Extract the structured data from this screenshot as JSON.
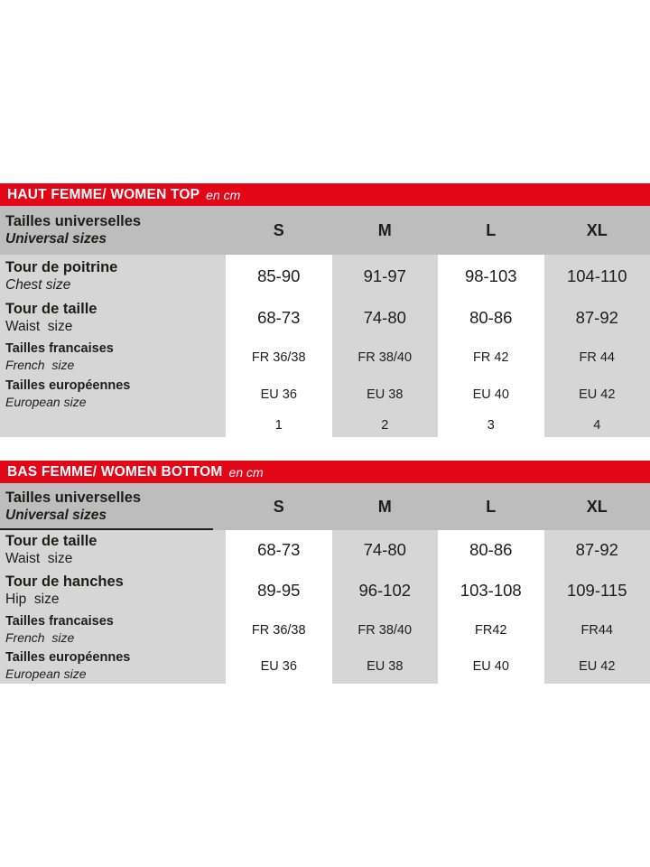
{
  "colors": {
    "header_red": "#e30617",
    "header_text": "#ffffff",
    "band_gray": "#bdbdbd",
    "cell_gray": "#d6d6d6",
    "text": "#1d1d1b"
  },
  "top_table": {
    "title": "HAUT FEMME/ WOMEN TOP",
    "unit": "en cm",
    "header": {
      "label_fr": "Tailles universelles",
      "label_en": "Universal sizes",
      "columns": [
        "S",
        "M",
        "L",
        "XL"
      ]
    },
    "rows": [
      {
        "label_fr": "Tour de poitrine",
        "label_en": "Chest size",
        "values": [
          "85-90",
          "91-97",
          "98-103",
          "104-110"
        ]
      },
      {
        "label_fr": "Tour de taille",
        "label_en": "Waist  size",
        "values": [
          "68-73",
          "74-80",
          "80-86",
          "87-92"
        ]
      },
      {
        "label_fr": "Tailles francaises",
        "label_en": "French  size",
        "values": [
          "FR 36/38",
          "FR 38/40",
          "FR 42",
          "FR 44"
        ]
      },
      {
        "label_fr": "Tailles européennes",
        "label_en": "European size",
        "values": [
          "EU 36",
          "EU 38",
          "EU 40",
          "EU 42"
        ]
      },
      {
        "label_fr": "",
        "label_en": "",
        "values": [
          "1",
          "2",
          "3",
          "4"
        ]
      }
    ]
  },
  "bottom_table": {
    "title": "BAS FEMME/ WOMEN BOTTOM",
    "unit": "en cm",
    "header": {
      "label_fr": "Tailles universelles",
      "label_en": "Universal sizes",
      "columns": [
        "S",
        "M",
        "L",
        "XL"
      ]
    },
    "rows": [
      {
        "label_fr": "Tour de taille",
        "label_en": "Waist  size",
        "values": [
          "68-73",
          "74-80",
          "80-86",
          "87-92"
        ]
      },
      {
        "label_fr": "Tour de hanches",
        "label_en": "Hip  size",
        "values": [
          "89-95",
          "96-102",
          "103-108",
          "109-115"
        ]
      },
      {
        "label_fr": "Tailles francaises",
        "label_en": "French  size",
        "values": [
          "FR 36/38",
          "FR 38/40",
          "FR42",
          "FR44"
        ]
      },
      {
        "label_fr": "Tailles européennes",
        "label_en": "European size",
        "values": [
          "EU 36",
          "EU 38",
          "EU 40",
          "EU 42"
        ]
      }
    ]
  }
}
